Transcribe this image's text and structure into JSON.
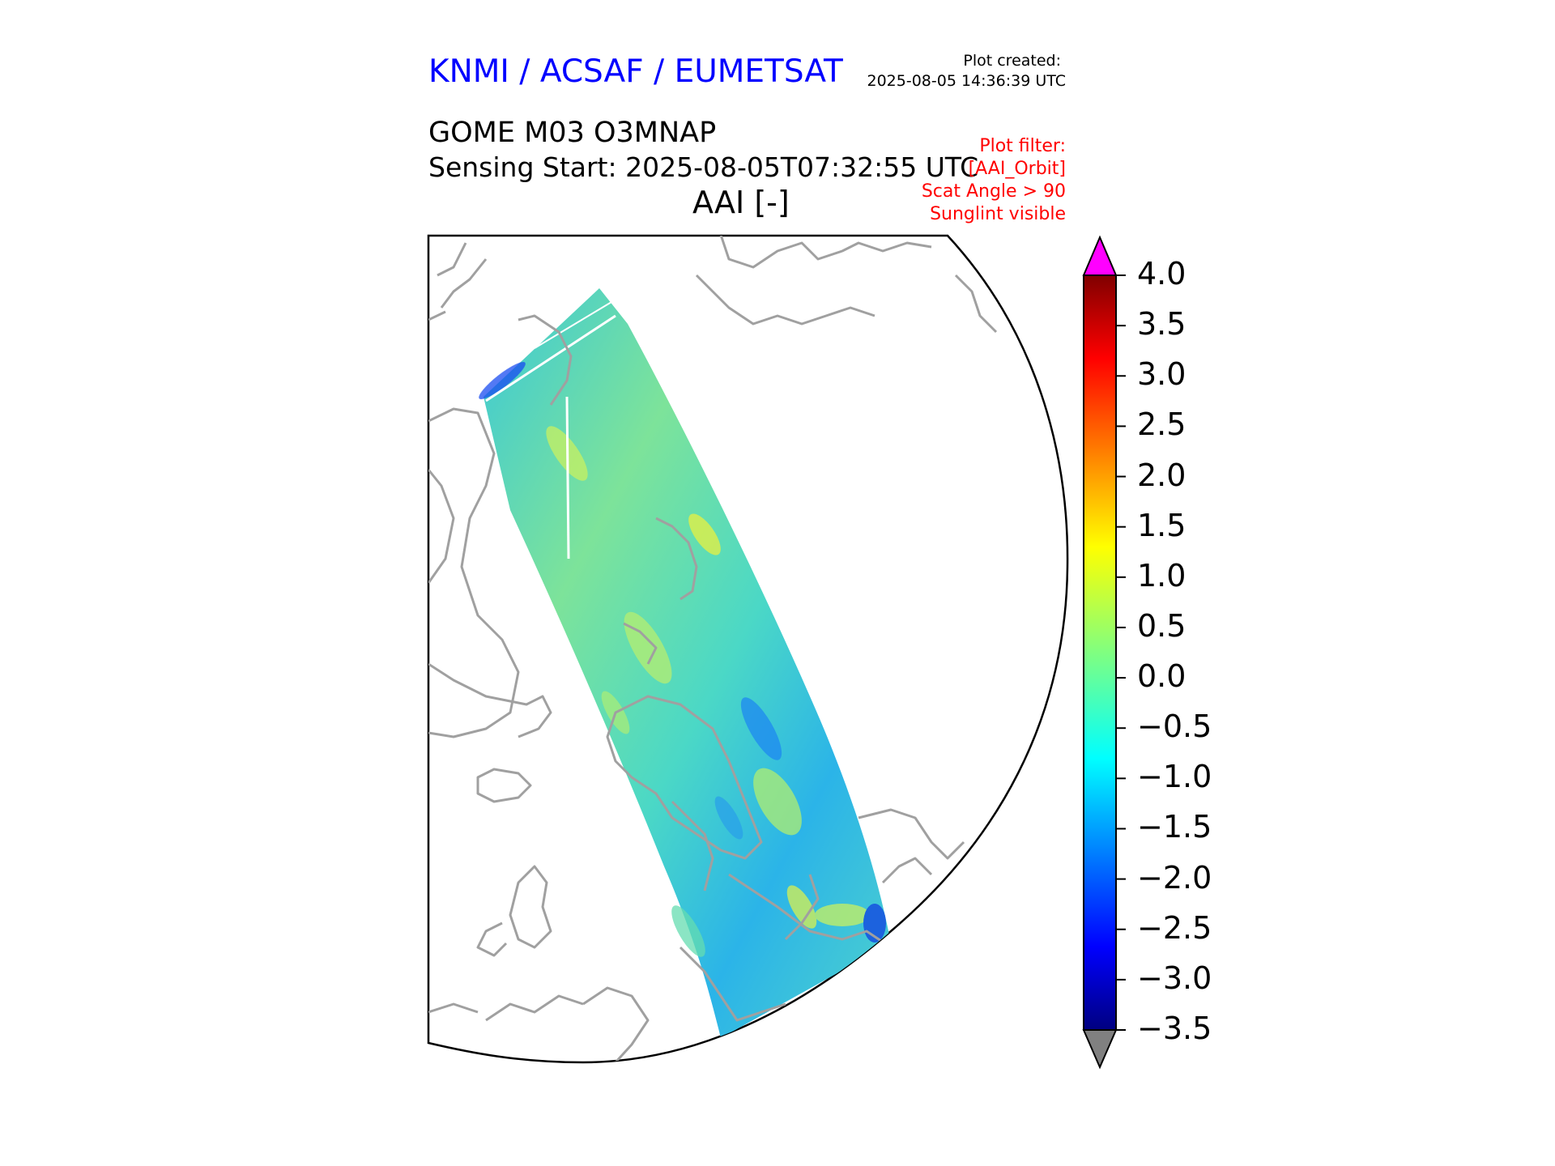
{
  "header": {
    "organization": "KNMI / ACSAF / EUMETSAT",
    "plot_created_label": "Plot created:",
    "plot_created_time": "2025-08-05 14:36:39 UTC",
    "product": "GOME M03 O3MNAP",
    "sensing_start": "Sensing Start: 2025-08-05T07:32:55 UTC",
    "parameter": "AAI [-]"
  },
  "filter_notes": [
    "Plot filter:",
    "[AAI_Orbit]",
    "Scat Angle > 90",
    "Sunglint visible"
  ],
  "colors": {
    "org_text": "#0000ff",
    "filter_text": "#ff0000",
    "coastline": "#a0a0a0",
    "over_max": "#ff00ff",
    "under_min": "#808080"
  },
  "colorbar": {
    "colormap": "jet",
    "min": -3.5,
    "max": 4.0,
    "ticks": [
      "4.0",
      "3.5",
      "3.0",
      "2.5",
      "2.0",
      "1.5",
      "1.0",
      "0.5",
      "0.0",
      "−0.5",
      "−1.0",
      "−1.5",
      "−2.0",
      "−2.5",
      "−3.0",
      "−3.5"
    ]
  }
}
